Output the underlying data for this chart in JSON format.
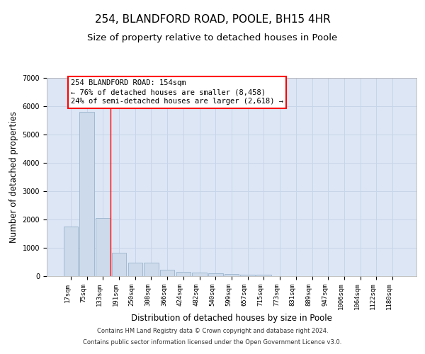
{
  "title_line1": "254, BLANDFORD ROAD, POOLE, BH15 4HR",
  "title_line2": "Size of property relative to detached houses in Poole",
  "xlabel": "Distribution of detached houses by size in Poole",
  "ylabel": "Number of detached properties",
  "footnote_line1": "Contains HM Land Registry data © Crown copyright and database right 2024.",
  "footnote_line2": "Contains public sector information licensed under the Open Government Licence v3.0.",
  "bar_labels": [
    "17sqm",
    "75sqm",
    "133sqm",
    "191sqm",
    "250sqm",
    "308sqm",
    "366sqm",
    "424sqm",
    "482sqm",
    "540sqm",
    "599sqm",
    "657sqm",
    "715sqm",
    "773sqm",
    "831sqm",
    "889sqm",
    "947sqm",
    "1006sqm",
    "1064sqm",
    "1122sqm",
    "1180sqm"
  ],
  "bar_heights": [
    1750,
    5800,
    2050,
    820,
    470,
    470,
    220,
    155,
    125,
    90,
    75,
    50,
    45,
    5,
    5,
    2,
    2,
    2,
    2,
    2,
    2
  ],
  "bar_color": "#ccdaeb",
  "bar_edgecolor": "#9ab5cc",
  "ylim": [
    0,
    7000
  ],
  "yticks": [
    0,
    1000,
    2000,
    3000,
    4000,
    5000,
    6000,
    7000
  ],
  "property_label": "254 BLANDFORD ROAD: 154sqm",
  "pct_smaller": 76,
  "num_smaller": 8458,
  "pct_larger": 24,
  "num_larger": 2618,
  "vline_x": 2.45,
  "grid_color": "#c8d4e8",
  "bg_color": "#dce6f5",
  "title_fontsize": 11,
  "subtitle_fontsize": 9.5,
  "tick_label_fontsize": 6.5,
  "axis_label_fontsize": 8.5,
  "annot_fontsize": 7.5,
  "footnote_fontsize": 6
}
